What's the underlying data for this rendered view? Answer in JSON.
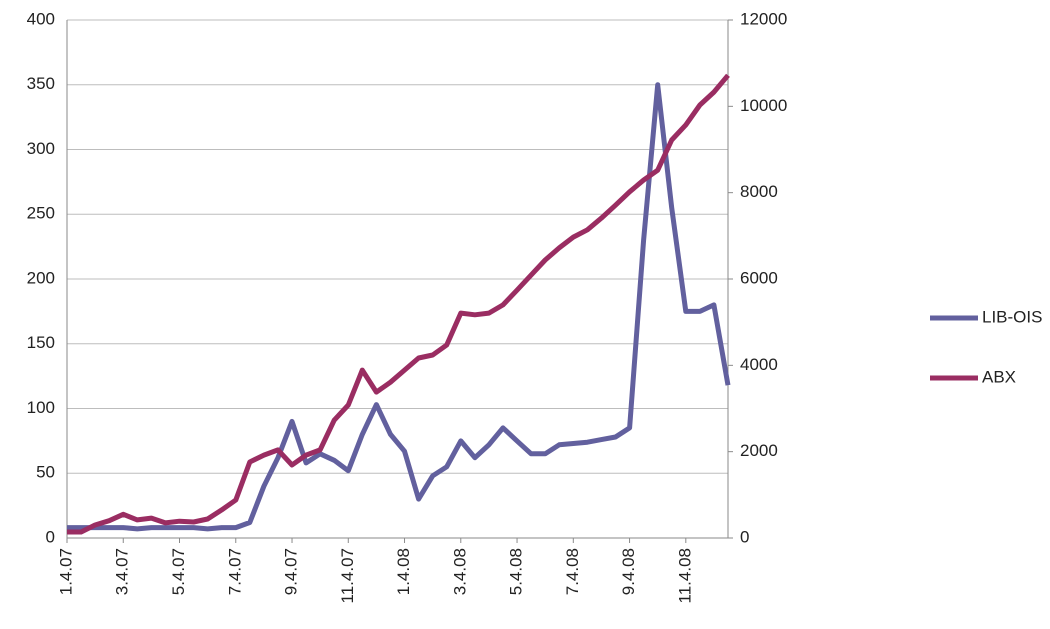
{
  "chart_data": {
    "type": "line",
    "categories": [
      "1.4.07",
      null,
      null,
      null,
      "3.4.07",
      null,
      null,
      null,
      "5.4.07",
      null,
      null,
      null,
      "7.4.07",
      null,
      null,
      null,
      "9.4.07",
      null,
      null,
      null,
      "11.4.07",
      null,
      null,
      null,
      "1.4.08",
      null,
      null,
      null,
      "3.4.08",
      null,
      null,
      null,
      "5.4.08",
      null,
      null,
      null,
      "7.4.08",
      null,
      null,
      null,
      "9.4.08",
      null,
      null,
      null,
      "11.4.08",
      null,
      null,
      null
    ],
    "series": [
      {
        "name": "LIB-OIS",
        "color": "#62609e",
        "values": [
          8,
          8,
          8,
          8,
          8,
          7,
          8,
          8,
          8,
          8,
          7,
          8,
          8,
          12,
          40,
          62,
          90,
          58,
          65,
          60,
          52,
          80,
          103,
          80,
          67,
          30,
          48,
          55,
          75,
          62,
          72,
          85,
          75,
          65,
          65,
          72,
          73,
          74,
          76,
          78,
          85,
          230,
          350,
          255,
          175,
          175,
          180,
          118
        ]
      },
      {
        "name": "ABX",
        "color": "#9a2d62",
        "axis": "y2",
        "values": [
          140,
          140,
          300,
          400,
          550,
          420,
          460,
          350,
          390,
          370,
          440,
          650,
          880,
          1760,
          1920,
          2040,
          1690,
          1920,
          2040,
          2730,
          3080,
          3890,
          3380,
          3610,
          3890,
          4170,
          4240,
          4470,
          5210,
          5170,
          5210,
          5400,
          5740,
          6090,
          6440,
          6720,
          6970,
          7140,
          7410,
          7710,
          8020,
          8290,
          8520,
          9220,
          9570,
          10030,
          10330,
          10720
        ]
      }
    ],
    "ylim": [
      0,
      400
    ],
    "yticks": [
      0,
      50,
      100,
      150,
      200,
      250,
      300,
      350,
      400
    ],
    "y2lim": [
      0,
      12000
    ],
    "y2ticks": [
      0,
      2000,
      4000,
      6000,
      8000,
      10000,
      12000
    ],
    "grid": true,
    "legend": "right"
  }
}
